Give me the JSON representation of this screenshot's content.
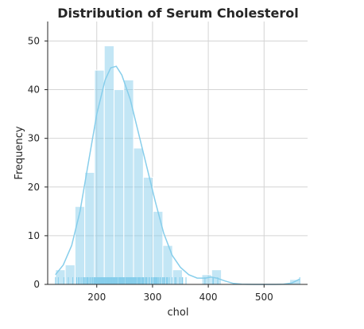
{
  "chart_data": {
    "type": "bar",
    "title": "Distribution of Serum Cholesterol",
    "xlabel": "chol",
    "ylabel": "Frequency",
    "xlim": [
      112,
      578
    ],
    "ylim": [
      0,
      54
    ],
    "xticks": [
      200,
      300,
      400,
      500
    ],
    "yticks": [
      0,
      10,
      20,
      30,
      40,
      50
    ],
    "grid": true,
    "legend": "none",
    "color": "#87ceeb",
    "bins": [
      {
        "x0": 126,
        "x1": 143.5,
        "count": 3
      },
      {
        "x0": 143.5,
        "x1": 161,
        "count": 4
      },
      {
        "x0": 161,
        "x1": 178.5,
        "count": 16
      },
      {
        "x0": 178.5,
        "x1": 196,
        "count": 23
      },
      {
        "x0": 196,
        "x1": 213.5,
        "count": 44
      },
      {
        "x0": 213.5,
        "x1": 231,
        "count": 49
      },
      {
        "x0": 231,
        "x1": 248.5,
        "count": 40
      },
      {
        "x0": 248.5,
        "x1": 266,
        "count": 42
      },
      {
        "x0": 266,
        "x1": 283.5,
        "count": 28
      },
      {
        "x0": 283.5,
        "x1": 301,
        "count": 22
      },
      {
        "x0": 301,
        "x1": 318.5,
        "count": 15
      },
      {
        "x0": 318.5,
        "x1": 336,
        "count": 8
      },
      {
        "x0": 336,
        "x1": 353.5,
        "count": 3
      },
      {
        "x0": 353.5,
        "x1": 371,
        "count": 0
      },
      {
        "x0": 371,
        "x1": 388.5,
        "count": 0
      },
      {
        "x0": 388.5,
        "x1": 406,
        "count": 2
      },
      {
        "x0": 406,
        "x1": 423.5,
        "count": 3
      },
      {
        "x0": 423.5,
        "x1": 441,
        "count": 0
      },
      {
        "x0": 441,
        "x1": 458.5,
        "count": 0
      },
      {
        "x0": 458.5,
        "x1": 476,
        "count": 0
      },
      {
        "x0": 476,
        "x1": 493.5,
        "count": 0
      },
      {
        "x0": 493.5,
        "x1": 511,
        "count": 0
      },
      {
        "x0": 511,
        "x1": 528.5,
        "count": 0
      },
      {
        "x0": 528.5,
        "x1": 546,
        "count": 0
      },
      {
        "x0": 546,
        "x1": 564,
        "count": 1
      }
    ],
    "kde": [
      {
        "x": 126,
        "y": 2
      },
      {
        "x": 140,
        "y": 4
      },
      {
        "x": 155,
        "y": 8
      },
      {
        "x": 170,
        "y": 15
      },
      {
        "x": 185,
        "y": 25
      },
      {
        "x": 200,
        "y": 35
      },
      {
        "x": 215,
        "y": 42
      },
      {
        "x": 225,
        "y": 44.5
      },
      {
        "x": 235,
        "y": 44.8
      },
      {
        "x": 245,
        "y": 43
      },
      {
        "x": 260,
        "y": 38
      },
      {
        "x": 275,
        "y": 31
      },
      {
        "x": 290,
        "y": 24
      },
      {
        "x": 305,
        "y": 17
      },
      {
        "x": 320,
        "y": 10.5
      },
      {
        "x": 335,
        "y": 6
      },
      {
        "x": 350,
        "y": 3.5
      },
      {
        "x": 365,
        "y": 2
      },
      {
        "x": 380,
        "y": 1.3
      },
      {
        "x": 395,
        "y": 1.3
      },
      {
        "x": 405,
        "y": 1.5
      },
      {
        "x": 415,
        "y": 1.3
      },
      {
        "x": 430,
        "y": 0.7
      },
      {
        "x": 445,
        "y": 0.2
      },
      {
        "x": 460,
        "y": 0.05
      },
      {
        "x": 480,
        "y": 0
      },
      {
        "x": 500,
        "y": 0
      },
      {
        "x": 520,
        "y": 0
      },
      {
        "x": 535,
        "y": 0.05
      },
      {
        "x": 550,
        "y": 0.3
      },
      {
        "x": 564,
        "y": 1.1
      }
    ],
    "rug": [
      126,
      131,
      141,
      149,
      157,
      164,
      167,
      169,
      172,
      175,
      177,
      178,
      180,
      182,
      183,
      184,
      186,
      188,
      190,
      192,
      193,
      195,
      196,
      197,
      198,
      199,
      200,
      201,
      202,
      203,
      204,
      205,
      206,
      207,
      208,
      209,
      210,
      211,
      212,
      213,
      214,
      215,
      216,
      217,
      218,
      219,
      220,
      221,
      222,
      223,
      224,
      225,
      226,
      227,
      228,
      229,
      230,
      231,
      232,
      233,
      234,
      235,
      236,
      237,
      239,
      240,
      241,
      242,
      243,
      244,
      245,
      246,
      247,
      248,
      249,
      250,
      252,
      253,
      254,
      255,
      256,
      257,
      258,
      259,
      260,
      261,
      262,
      263,
      264,
      265,
      266,
      267,
      268,
      269,
      270,
      271,
      273,
      274,
      275,
      276,
      277,
      278,
      280,
      281,
      282,
      283,
      284,
      286,
      288,
      289,
      290,
      293,
      295,
      298,
      299,
      300,
      302,
      303,
      304,
      305,
      306,
      307,
      308,
      309,
      311,
      313,
      315,
      318,
      319,
      321,
      322,
      325,
      326,
      327,
      330,
      335,
      340,
      342,
      349,
      353,
      354,
      360,
      394,
      407,
      409,
      417,
      564
    ]
  }
}
